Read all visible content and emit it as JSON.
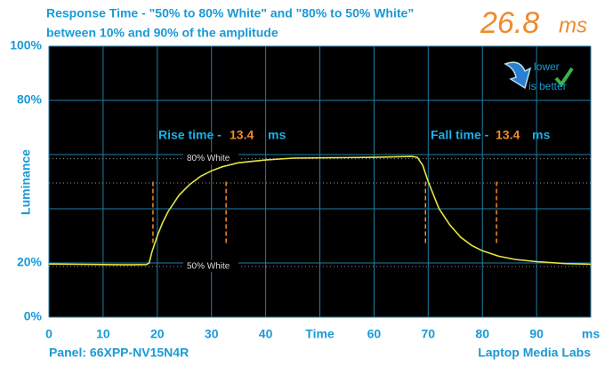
{
  "chart_data": {
    "type": "line",
    "title": "Response Time - \"50% to 80% White\" and \"80% to 50% White”",
    "subtitle": "between 10% and 90% of the amplitude",
    "total": {
      "value": 26.8,
      "unit": "ms"
    },
    "y_label": "Luminance",
    "rise": {
      "label": "Rise time -",
      "value": 13.4,
      "unit": "ms"
    },
    "fall": {
      "label": "Fall time -",
      "value": 13.4,
      "unit": "ms"
    },
    "badge": [
      "lower",
      "is better"
    ],
    "panel": "Panel: 66XPP-NV15N4R",
    "credit": "Laptop Media Labs",
    "xlim": [
      0,
      100
    ],
    "ylim": [
      0,
      100
    ],
    "xticks": [
      0,
      10,
      20,
      30,
      40,
      {
        "value": 50,
        "label": "Time"
      },
      60,
      70,
      80,
      90,
      {
        "value": 100,
        "label": "ms"
      }
    ],
    "yticks": [
      {
        "value": 0,
        "label": "0%"
      },
      {
        "value": 20,
        "label": "20%"
      },
      {
        "value": 80,
        "label": "80%"
      },
      {
        "value": 100,
        "label": "100%"
      }
    ],
    "minor_yticks": [
      40,
      60
    ],
    "grid": true,
    "reference_lines": [
      {
        "value": 58.5,
        "label": "80% White"
      },
      {
        "value": 49.5
      },
      {
        "value": 18.7,
        "label": "50% White"
      }
    ],
    "markers": [
      19.2,
      32.7,
      69.5,
      82.6
    ],
    "x": [
      0,
      5,
      10,
      15,
      18,
      18.5,
      19,
      20,
      21,
      22,
      24,
      26,
      28,
      30,
      32,
      35,
      40,
      45,
      50,
      60,
      67,
      68,
      69,
      70,
      71,
      72,
      74,
      76,
      78,
      80,
      83,
      86,
      90,
      95,
      100
    ],
    "series": [
      {
        "color": "#e6e645",
        "values": [
          19.6,
          19.5,
          19.4,
          19.3,
          19.4,
          20,
          24,
          30,
          35,
          39,
          45,
          49,
          52,
          54,
          55.5,
          57,
          58,
          58.7,
          58.8,
          59,
          59.3,
          59,
          56,
          50,
          45,
          40,
          34,
          29.5,
          26.5,
          24.5,
          22.5,
          21.3,
          20.5,
          19.8,
          19.5
        ]
      }
    ]
  }
}
